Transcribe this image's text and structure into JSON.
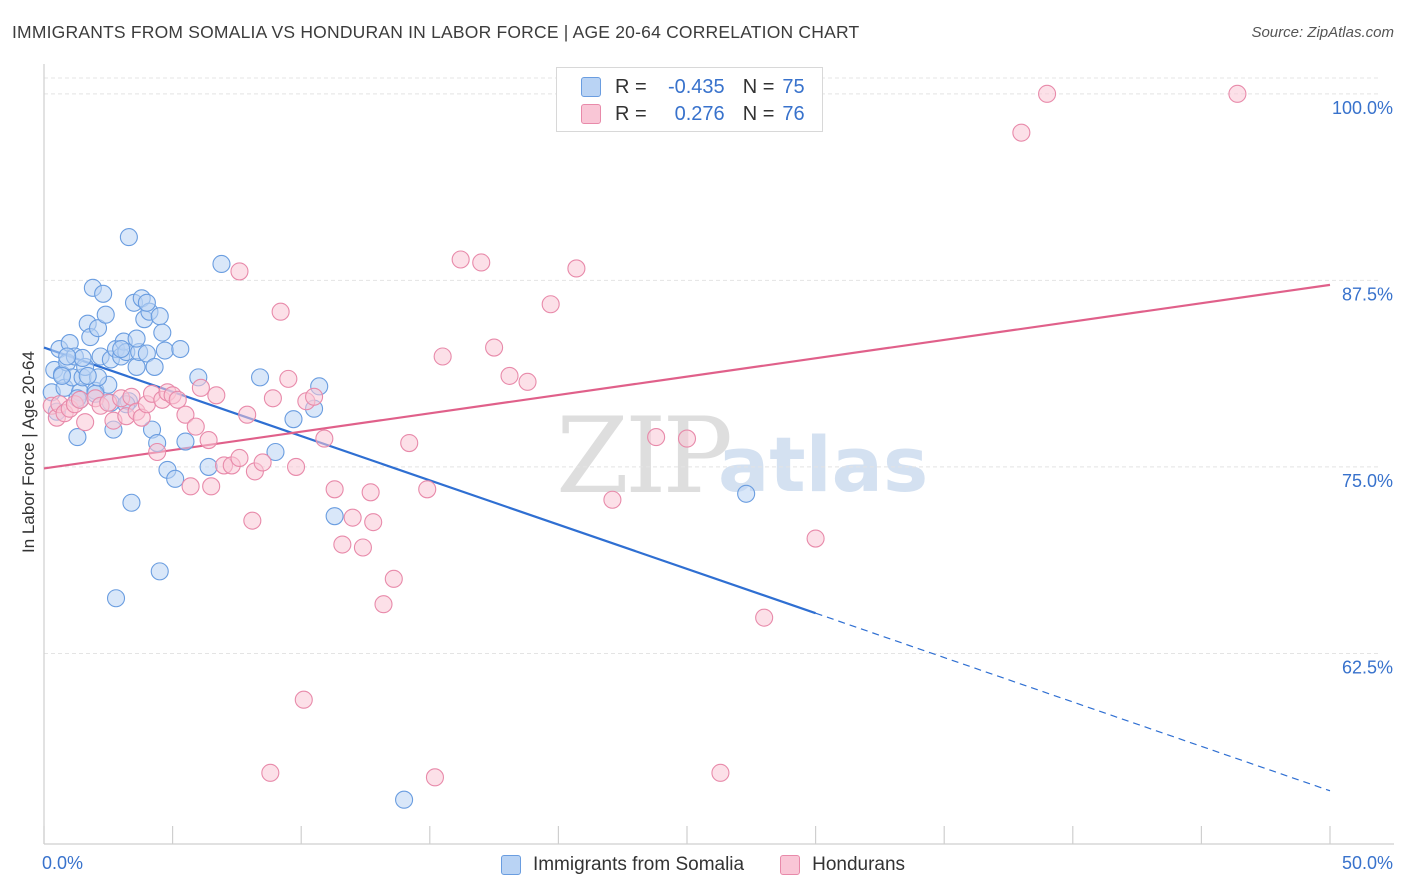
{
  "title": "IMMIGRANTS FROM SOMALIA VS HONDURAN IN LABOR FORCE | AGE 20-64 CORRELATION CHART",
  "source": "Source: ZipAtlas.com",
  "watermark": {
    "zip": "ZIP",
    "atlas": "atlas"
  },
  "stats": {
    "r_label": "R =",
    "n_label": "N =",
    "rows": [
      {
        "r": "-0.435",
        "n": "75"
      },
      {
        "r": "0.276",
        "n": "76"
      }
    ]
  },
  "colors": {
    "blue_fill": "#b9d3f4",
    "blue_stroke": "#6a9de0",
    "blue_line": "#2f6fd2",
    "pink_fill": "#f9c6d6",
    "pink_stroke": "#e88aaa",
    "pink_line": "#e0608a",
    "tick_label": "#3872cc",
    "grid": "#e4e4e4"
  },
  "chart_data": {
    "type": "scatter",
    "title": "IMMIGRANTS FROM SOMALIA VS HONDURAN IN LABOR FORCE | AGE 20-64 CORRELATION CHART",
    "xlabel": "",
    "ylabel": "In Labor Force | Age 20-64",
    "xlim": [
      0,
      50
    ],
    "ylim": [
      50,
      102
    ],
    "x_tick_labels": [
      {
        "value": 0,
        "label": "0.0%"
      },
      {
        "value": 50,
        "label": "50.0%"
      }
    ],
    "y_ticks": [
      {
        "value": 62.5,
        "label": "62.5%"
      },
      {
        "value": 75.0,
        "label": "75.0%"
      },
      {
        "value": 87.5,
        "label": "87.5%"
      },
      {
        "value": 100.0,
        "label": "100.0%"
      }
    ],
    "x_minor_ticks": [
      0,
      5,
      10,
      15,
      20,
      25,
      30,
      35,
      40,
      45,
      50
    ],
    "grid": true,
    "legend_position": "bottom",
    "series": [
      {
        "name": "Immigrants from Somalia",
        "color": "blue",
        "trend": {
          "x": [
            0,
            30,
            50
          ],
          "y": [
            83.0,
            65.2,
            53.3
          ],
          "solid_until": 30
        },
        "points": [
          [
            0.3,
            80.0
          ],
          [
            0.4,
            81.5
          ],
          [
            0.5,
            78.7
          ],
          [
            0.6,
            82.9
          ],
          [
            0.7,
            81.2
          ],
          [
            0.8,
            80.3
          ],
          [
            0.9,
            82.0
          ],
          [
            1.0,
            83.3
          ],
          [
            1.1,
            81.0
          ],
          [
            1.2,
            82.4
          ],
          [
            1.3,
            77.0
          ],
          [
            1.4,
            80.0
          ],
          [
            1.5,
            81.0
          ],
          [
            1.6,
            81.7
          ],
          [
            1.7,
            84.6
          ],
          [
            1.8,
            83.7
          ],
          [
            1.9,
            87.0
          ],
          [
            1.4,
            79.5
          ],
          [
            2.0,
            80.1
          ],
          [
            2.1,
            84.3
          ],
          [
            2.2,
            82.4
          ],
          [
            2.3,
            86.6
          ],
          [
            2.4,
            85.2
          ],
          [
            2.5,
            80.5
          ],
          [
            2.6,
            82.2
          ],
          [
            2.7,
            77.5
          ],
          [
            2.8,
            82.9
          ],
          [
            3.0,
            82.4
          ],
          [
            3.1,
            83.4
          ],
          [
            3.2,
            82.7
          ],
          [
            3.3,
            79.4
          ],
          [
            3.4,
            72.6
          ],
          [
            3.5,
            86.0
          ],
          [
            3.6,
            81.7
          ],
          [
            3.7,
            82.7
          ],
          [
            3.8,
            86.3
          ],
          [
            3.9,
            84.9
          ],
          [
            4.0,
            82.6
          ],
          [
            4.1,
            85.4
          ],
          [
            4.2,
            77.5
          ],
          [
            4.3,
            81.7
          ],
          [
            4.4,
            76.6
          ],
          [
            4.5,
            85.1
          ],
          [
            4.6,
            84.0
          ],
          [
            4.7,
            82.8
          ],
          [
            4.8,
            74.8
          ],
          [
            5.1,
            74.2
          ],
          [
            5.3,
            82.9
          ],
          [
            5.5,
            76.7
          ],
          [
            6.0,
            81.0
          ],
          [
            6.4,
            75.0
          ],
          [
            6.9,
            88.6
          ],
          [
            8.4,
            81.0
          ],
          [
            9.0,
            76.0
          ],
          [
            9.7,
            78.2
          ],
          [
            10.7,
            80.4
          ],
          [
            10.5,
            78.9
          ],
          [
            11.3,
            71.7
          ],
          [
            3.3,
            90.4
          ],
          [
            4.5,
            68.0
          ],
          [
            2.8,
            66.2
          ],
          [
            14.0,
            52.7
          ],
          [
            27.3,
            73.2
          ],
          [
            0.7,
            81.1
          ],
          [
            1.3,
            79.6
          ],
          [
            2.0,
            79.9
          ],
          [
            2.6,
            79.3
          ],
          [
            3.0,
            82.9
          ],
          [
            3.6,
            83.6
          ],
          [
            2.1,
            81.0
          ],
          [
            1.7,
            81.1
          ],
          [
            3.2,
            79.2
          ],
          [
            4.0,
            86.0
          ],
          [
            1.5,
            82.3
          ],
          [
            0.9,
            82.4
          ]
        ]
      },
      {
        "name": "Hondurans",
        "color": "pink",
        "trend": {
          "x": [
            0,
            50
          ],
          "y": [
            74.9,
            87.2
          ],
          "solid_until": 50
        },
        "points": [
          [
            0.3,
            79.1
          ],
          [
            0.5,
            78.3
          ],
          [
            0.6,
            79.2
          ],
          [
            0.8,
            78.6
          ],
          [
            1.0,
            78.9
          ],
          [
            1.2,
            79.2
          ],
          [
            1.4,
            79.5
          ],
          [
            1.6,
            78.0
          ],
          [
            2.0,
            79.6
          ],
          [
            2.2,
            79.1
          ],
          [
            2.5,
            79.3
          ],
          [
            2.7,
            78.1
          ],
          [
            3.0,
            79.6
          ],
          [
            3.2,
            78.4
          ],
          [
            3.4,
            79.7
          ],
          [
            3.6,
            78.7
          ],
          [
            3.8,
            78.3
          ],
          [
            4.0,
            79.2
          ],
          [
            4.2,
            79.9
          ],
          [
            4.4,
            76.0
          ],
          [
            4.6,
            79.5
          ],
          [
            4.8,
            80.0
          ],
          [
            5.0,
            79.8
          ],
          [
            5.2,
            79.5
          ],
          [
            5.5,
            78.5
          ],
          [
            5.7,
            73.7
          ],
          [
            5.9,
            77.7
          ],
          [
            6.1,
            80.3
          ],
          [
            6.4,
            76.8
          ],
          [
            6.7,
            79.8
          ],
          [
            7.0,
            75.1
          ],
          [
            7.3,
            75.1
          ],
          [
            7.6,
            75.6
          ],
          [
            7.9,
            78.5
          ],
          [
            8.2,
            74.7
          ],
          [
            8.5,
            75.3
          ],
          [
            8.9,
            79.6
          ],
          [
            9.2,
            85.4
          ],
          [
            9.5,
            80.9
          ],
          [
            9.8,
            75.0
          ],
          [
            10.2,
            79.4
          ],
          [
            10.5,
            79.7
          ],
          [
            10.9,
            76.9
          ],
          [
            11.3,
            73.5
          ],
          [
            11.6,
            69.8
          ],
          [
            12.0,
            71.6
          ],
          [
            12.4,
            69.6
          ],
          [
            12.8,
            71.3
          ],
          [
            13.2,
            65.8
          ],
          [
            13.6,
            67.5
          ],
          [
            14.2,
            76.6
          ],
          [
            14.9,
            73.5
          ],
          [
            15.5,
            82.4
          ],
          [
            16.2,
            88.9
          ],
          [
            17.0,
            88.7
          ],
          [
            17.5,
            83.0
          ],
          [
            18.1,
            81.1
          ],
          [
            18.8,
            80.7
          ],
          [
            19.7,
            85.9
          ],
          [
            20.7,
            88.3
          ],
          [
            22.1,
            72.8
          ],
          [
            23.8,
            77.0
          ],
          [
            25.0,
            76.9
          ],
          [
            26.3,
            54.5
          ],
          [
            28.0,
            64.9
          ],
          [
            30.0,
            70.2
          ],
          [
            38.0,
            97.4
          ],
          [
            39.0,
            100.0
          ],
          [
            46.4,
            100.0
          ],
          [
            10.1,
            59.4
          ],
          [
            8.8,
            54.5
          ],
          [
            15.2,
            54.2
          ],
          [
            8.1,
            71.4
          ],
          [
            6.5,
            73.7
          ],
          [
            12.7,
            73.3
          ],
          [
            7.6,
            88.1
          ]
        ]
      }
    ]
  },
  "legend": {
    "items": [
      {
        "label": "Immigrants from Somalia"
      },
      {
        "label": "Hondurans"
      }
    ]
  }
}
